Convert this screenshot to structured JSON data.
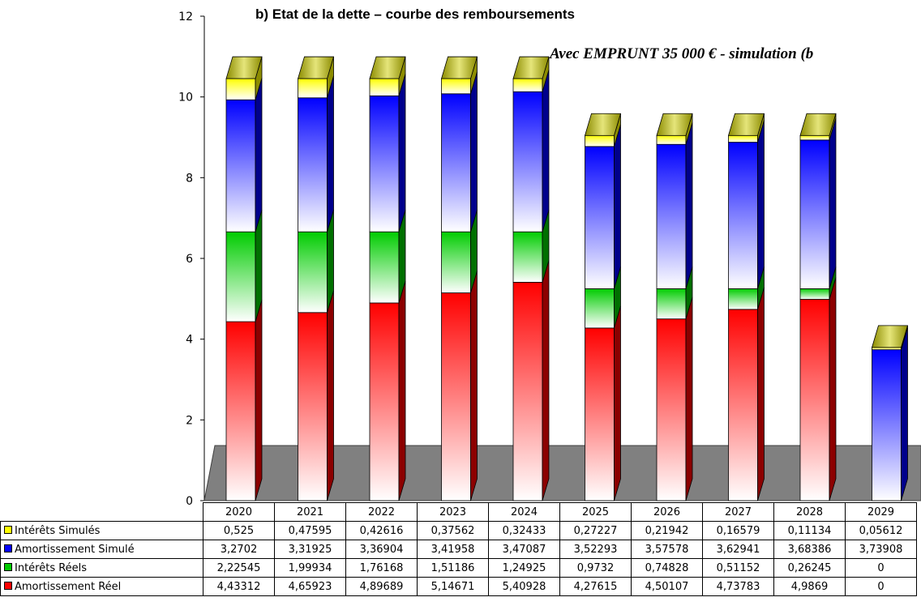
{
  "chart_data": {
    "type": "bar",
    "stacked": true,
    "three_d": true,
    "title": "b) Etat de la dette – courbe des remboursements",
    "subtitle": "Avec EMPRUNT 35 000 € - simulation (b",
    "ylim": [
      0,
      12
    ],
    "yticks": [
      "0",
      "2",
      "4",
      "6",
      "8",
      "10",
      "12"
    ],
    "categories": [
      "2020",
      "2021",
      "2022",
      "2023",
      "2024",
      "2025",
      "2026",
      "2027",
      "2028",
      "2029"
    ],
    "series": [
      {
        "name": "Amortissement Réel",
        "color": "#ff0000",
        "values": [
          4.43312,
          4.65923,
          4.89689,
          5.14671,
          5.40928,
          4.27615,
          4.50107,
          4.73783,
          4.9869,
          0
        ],
        "labels": [
          "4,43312",
          "4,65923",
          "4,89689",
          "5,14671",
          "5,40928",
          "4,27615",
          "4,50107",
          "4,73783",
          "4,9869",
          "0"
        ]
      },
      {
        "name": "Intérêts Réels",
        "color": "#00cc00",
        "values": [
          2.22545,
          1.99934,
          1.76168,
          1.51186,
          1.24925,
          0.9732,
          0.74828,
          0.51152,
          0.26245,
          0
        ],
        "labels": [
          "2,22545",
          "1,99934",
          "1,76168",
          "1,51186",
          "1,24925",
          "0,9732",
          "0,74828",
          "0,51152",
          "0,26245",
          "0"
        ]
      },
      {
        "name": "Amortissement Simulé",
        "color": "#0000ff",
        "values": [
          3.2702,
          3.31925,
          3.36904,
          3.41958,
          3.47087,
          3.52293,
          3.57578,
          3.62941,
          3.68386,
          3.73908
        ],
        "labels": [
          "3,2702",
          "3,31925",
          "3,36904",
          "3,41958",
          "3,47087",
          "3,52293",
          "3,57578",
          "3,62941",
          "3,68386",
          "3,73908"
        ]
      },
      {
        "name": "Intérêts Simulés",
        "color": "#ffff00",
        "values": [
          0.525,
          0.47595,
          0.42616,
          0.37562,
          0.32433,
          0.27227,
          0.21942,
          0.16579,
          0.11134,
          0.05612
        ],
        "labels": [
          "0,525",
          "0,47595",
          "0,42616",
          "0,37562",
          "0,32433",
          "0,27227",
          "0,21942",
          "0,16579",
          "0,11134",
          "0,05612"
        ]
      }
    ]
  }
}
